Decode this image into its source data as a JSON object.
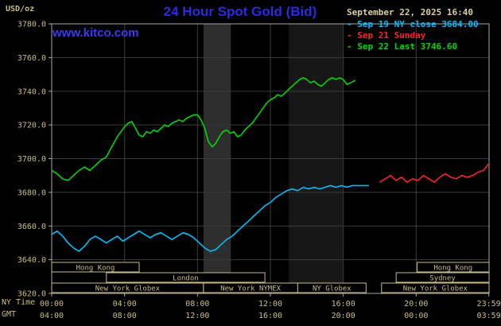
{
  "header": {
    "unit_label": "USD/oz",
    "title": "24 Hour Spot Gold (Bid)",
    "datetime": "September 22, 2025 16:40",
    "watermark": "www.kitco.com"
  },
  "legend": {
    "items": [
      {
        "label": "Sep 19 NY close 3684.00",
        "color": "#00bfff"
      },
      {
        "label": "Sep 21 Sunday",
        "color": "#ff2222"
      },
      {
        "label": "Sep 22 Last 3746.60",
        "color": "#00d800"
      }
    ]
  },
  "colors": {
    "background": "#000000",
    "grid": "#3b3b3b",
    "frame": "#a8a8a8",
    "axis_text": "#cbbd85",
    "session": "#cbbd85",
    "title": "#2b2be0",
    "watermark": "#3a3af0",
    "datetime": "#d8cfa2"
  },
  "chart_data": {
    "type": "line",
    "title": "24 Hour Spot Gold (Bid)",
    "unit": "USD/oz",
    "last_value": 3746.6,
    "prior_close": 3684.0,
    "ylim": [
      3620,
      3780
    ],
    "yticks": [
      3620,
      3640,
      3660,
      3680,
      3700,
      3720,
      3740,
      3760,
      3780
    ],
    "x_axis": {
      "ny_label": "NY Time",
      "gmt_label": "GMT",
      "tick_hours": [
        0,
        4,
        8,
        12,
        16,
        20,
        23.983
      ],
      "ny_ticks": [
        "00:00",
        "04:00",
        "08:00",
        "12:00",
        "16:00",
        "20:00",
        "23:59"
      ],
      "gmt_ticks": [
        "04:00",
        "08:00",
        "12:00",
        "16:00",
        "20:00",
        "00:00",
        "03:59"
      ]
    },
    "bands": [
      {
        "start": 8.33,
        "end": 9.83,
        "color": "#2e2e2e"
      },
      {
        "start": 13.0,
        "end": 16.0,
        "color": "#171717"
      }
    ],
    "sessions": [
      {
        "row": 0,
        "label": "Hong Kong",
        "start": 0,
        "end": 4.8
      },
      {
        "row": 0,
        "label": "Hong Kong",
        "start": 20.05,
        "end": 24
      },
      {
        "row": 1,
        "label": "London",
        "start": 3,
        "end": 11.7
      },
      {
        "row": 1,
        "label": "Sydney",
        "start": 18.9,
        "end": 24
      },
      {
        "row": 2,
        "label": "New York Globex",
        "start": 0,
        "end": 8.33
      },
      {
        "row": 2,
        "label": "New York NYMEX",
        "start": 8.33,
        "end": 13.5
      },
      {
        "row": 2,
        "label": "NY Globex",
        "start": 13.5,
        "end": 17.25
      },
      {
        "row": 2,
        "label": "New York Globex",
        "start": 18.1,
        "end": 24
      }
    ],
    "series": [
      {
        "id": "sep19",
        "name": "Sep 19 NY close",
        "color": "#00bfff",
        "points": [
          [
            0,
            3655
          ],
          [
            0.3,
            3657
          ],
          [
            0.6,
            3654
          ],
          [
            0.9,
            3650
          ],
          [
            1.2,
            3647
          ],
          [
            1.5,
            3645
          ],
          [
            1.8,
            3648
          ],
          [
            2.1,
            3652
          ],
          [
            2.4,
            3654
          ],
          [
            2.7,
            3652
          ],
          [
            3.0,
            3650
          ],
          [
            3.3,
            3652
          ],
          [
            3.6,
            3654
          ],
          [
            3.9,
            3651
          ],
          [
            4.2,
            3653
          ],
          [
            4.5,
            3655
          ],
          [
            4.8,
            3657
          ],
          [
            5.1,
            3655
          ],
          [
            5.4,
            3653
          ],
          [
            5.7,
            3655
          ],
          [
            6.0,
            3656
          ],
          [
            6.3,
            3654
          ],
          [
            6.6,
            3652
          ],
          [
            6.9,
            3654
          ],
          [
            7.2,
            3656
          ],
          [
            7.5,
            3655
          ],
          [
            7.8,
            3653
          ],
          [
            8.1,
            3650
          ],
          [
            8.4,
            3647
          ],
          [
            8.7,
            3645
          ],
          [
            9.0,
            3646
          ],
          [
            9.3,
            3649
          ],
          [
            9.6,
            3652
          ],
          [
            9.9,
            3654
          ],
          [
            10.2,
            3657
          ],
          [
            10.5,
            3660
          ],
          [
            10.8,
            3663
          ],
          [
            11.1,
            3666
          ],
          [
            11.4,
            3669
          ],
          [
            11.7,
            3672
          ],
          [
            12.0,
            3674
          ],
          [
            12.3,
            3677
          ],
          [
            12.6,
            3679
          ],
          [
            12.9,
            3681
          ],
          [
            13.2,
            3682
          ],
          [
            13.5,
            3681
          ],
          [
            13.8,
            3683
          ],
          [
            14.1,
            3682
          ],
          [
            14.4,
            3683
          ],
          [
            14.7,
            3682
          ],
          [
            15.0,
            3683
          ],
          [
            15.3,
            3684
          ],
          [
            15.6,
            3683
          ],
          [
            15.9,
            3684
          ],
          [
            16.2,
            3683
          ],
          [
            16.5,
            3684
          ],
          [
            17.0,
            3684
          ],
          [
            17.4,
            3684
          ]
        ]
      },
      {
        "id": "sep21",
        "name": "Sep 21 Sunday",
        "color": "#ff2222",
        "points": [
          [
            18.0,
            3686
          ],
          [
            18.3,
            3688
          ],
          [
            18.6,
            3690
          ],
          [
            18.9,
            3687
          ],
          [
            19.2,
            3689
          ],
          [
            19.5,
            3686
          ],
          [
            19.8,
            3688
          ],
          [
            20.1,
            3687
          ],
          [
            20.4,
            3690
          ],
          [
            20.7,
            3688
          ],
          [
            21.0,
            3686
          ],
          [
            21.3,
            3689
          ],
          [
            21.6,
            3691
          ],
          [
            21.9,
            3689
          ],
          [
            22.2,
            3688
          ],
          [
            22.5,
            3690
          ],
          [
            22.8,
            3689
          ],
          [
            23.1,
            3690
          ],
          [
            23.4,
            3692
          ],
          [
            23.7,
            3693
          ],
          [
            23.98,
            3697
          ]
        ]
      },
      {
        "id": "sep22",
        "name": "Sep 22",
        "color": "#00d800",
        "points": [
          [
            0,
            3693
          ],
          [
            0.3,
            3691
          ],
          [
            0.6,
            3688
          ],
          [
            0.9,
            3687
          ],
          [
            1.2,
            3690
          ],
          [
            1.5,
            3693
          ],
          [
            1.8,
            3695
          ],
          [
            2.1,
            3693
          ],
          [
            2.4,
            3696
          ],
          [
            2.7,
            3699
          ],
          [
            3.0,
            3701
          ],
          [
            3.2,
            3705
          ],
          [
            3.4,
            3709
          ],
          [
            3.6,
            3713
          ],
          [
            3.8,
            3716
          ],
          [
            4.0,
            3719
          ],
          [
            4.2,
            3721
          ],
          [
            4.4,
            3722
          ],
          [
            4.6,
            3718
          ],
          [
            4.8,
            3714
          ],
          [
            5.0,
            3713
          ],
          [
            5.2,
            3716
          ],
          [
            5.4,
            3715
          ],
          [
            5.6,
            3717
          ],
          [
            5.8,
            3716
          ],
          [
            6.0,
            3718
          ],
          [
            6.2,
            3720
          ],
          [
            6.4,
            3719
          ],
          [
            6.6,
            3721
          ],
          [
            6.8,
            3722
          ],
          [
            7.0,
            3723
          ],
          [
            7.2,
            3722
          ],
          [
            7.4,
            3724
          ],
          [
            7.6,
            3725
          ],
          [
            7.8,
            3726
          ],
          [
            8.0,
            3726
          ],
          [
            8.2,
            3723
          ],
          [
            8.4,
            3718
          ],
          [
            8.6,
            3710
          ],
          [
            8.8,
            3707
          ],
          [
            9.0,
            3709
          ],
          [
            9.2,
            3713
          ],
          [
            9.4,
            3716
          ],
          [
            9.6,
            3717
          ],
          [
            9.8,
            3715
          ],
          [
            10.0,
            3716
          ],
          [
            10.2,
            3713
          ],
          [
            10.4,
            3714
          ],
          [
            10.6,
            3717
          ],
          [
            10.8,
            3719
          ],
          [
            11.0,
            3721
          ],
          [
            11.2,
            3724
          ],
          [
            11.4,
            3727
          ],
          [
            11.6,
            3730
          ],
          [
            11.8,
            3733
          ],
          [
            12.0,
            3735
          ],
          [
            12.2,
            3736
          ],
          [
            12.4,
            3738
          ],
          [
            12.6,
            3737
          ],
          [
            12.8,
            3739
          ],
          [
            13.0,
            3741
          ],
          [
            13.2,
            3743
          ],
          [
            13.4,
            3745
          ],
          [
            13.6,
            3747
          ],
          [
            13.8,
            3748
          ],
          [
            14.0,
            3747
          ],
          [
            14.2,
            3745
          ],
          [
            14.4,
            3746
          ],
          [
            14.6,
            3744
          ],
          [
            14.8,
            3743
          ],
          [
            15.0,
            3745
          ],
          [
            15.2,
            3747
          ],
          [
            15.4,
            3748
          ],
          [
            15.6,
            3747
          ],
          [
            15.8,
            3748
          ],
          [
            16.0,
            3747
          ],
          [
            16.2,
            3744
          ],
          [
            16.4,
            3745
          ],
          [
            16.67,
            3746.6
          ]
        ]
      }
    ]
  }
}
